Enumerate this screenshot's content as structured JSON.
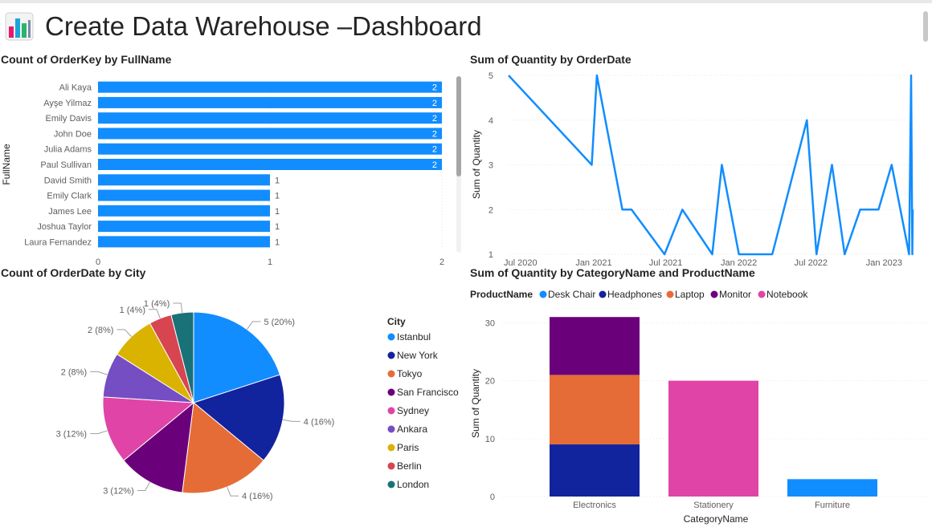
{
  "header": {
    "title": "Create Data Warehouse –Dashboard",
    "icon": "bar-chart-icon"
  },
  "chart_data": [
    {
      "id": "orders_by_name",
      "type": "bar",
      "orientation": "horizontal",
      "title": "Count of OrderKey by FullName",
      "xlabel": "",
      "ylabel": "FullName",
      "categories": [
        "Ali Kaya",
        "Ayşe Yilmaz",
        "Emily Davis",
        "John Doe",
        "Julia Adams",
        "Paul Sullivan",
        "David Smith",
        "Emily Clark",
        "James Lee",
        "Joshua Taylor",
        "Laura Fernandez"
      ],
      "values": [
        2,
        2,
        2,
        2,
        2,
        2,
        1,
        1,
        1,
        1,
        1
      ],
      "xlim": [
        0,
        2
      ],
      "xticks": [
        "0",
        "1",
        "2"
      ],
      "color": "#118DFF",
      "grid": true
    },
    {
      "id": "quantity_by_date",
      "type": "line",
      "title": "Sum of Quantity by OrderDate",
      "xlabel": "",
      "ylabel": "Sum of Quantity",
      "x": [
        "2020-06-01",
        "2020-12-27",
        "2021-01-09",
        "2021-03-14",
        "2021-04-06",
        "2021-06-28",
        "2021-08-12",
        "2021-10-26",
        "2021-11-19",
        "2022-01-01",
        "2022-03-26",
        "2022-06-21",
        "2022-07-15",
        "2022-08-23",
        "2022-09-24",
        "2022-11-02",
        "2022-12-18",
        "2023-01-20",
        "2023-03-05",
        "2023-03-10",
        "2023-03-13",
        "2023-03-14"
      ],
      "y": [
        5,
        3,
        5,
        2,
        2,
        1,
        2,
        1,
        3,
        1,
        1,
        4,
        1,
        3,
        1,
        2,
        2,
        3,
        1,
        5,
        1,
        2
      ],
      "ylim": [
        1,
        5
      ],
      "yticks": [
        "1",
        "2",
        "3",
        "4",
        "5"
      ],
      "xticks": [
        "Jul 2020",
        "Jan 2021",
        "Jul 2021",
        "Jan 2022",
        "Jul 2022",
        "Jan 2023"
      ],
      "color": "#118DFF",
      "grid": true
    },
    {
      "id": "orders_by_city",
      "type": "pie",
      "title": "Count of OrderDate by City",
      "legend_title": "City",
      "legend_position": "right",
      "categories": [
        "Istanbul",
        "New York",
        "Tokyo",
        "San Francisco",
        "Sydney",
        "Ankara",
        "Paris",
        "Berlin",
        "London"
      ],
      "values": [
        5,
        4,
        4,
        3,
        3,
        2,
        2,
        1,
        1
      ],
      "labels": [
        "5 (20%)",
        "4 (16%)",
        "4 (16%)",
        "3 (12%)",
        "3 (12%)",
        "2 (8%)",
        "2 (8%)",
        "1 (4%)",
        "1 (4%)"
      ],
      "colors": [
        "#118DFF",
        "#12239E",
        "#E66C37",
        "#6B007B",
        "#E044A7",
        "#744EC2",
        "#D9B300",
        "#D64550",
        "#197278"
      ]
    },
    {
      "id": "quantity_by_category",
      "type": "bar",
      "stacked": true,
      "title": "Sum of Quantity by CategoryName and ProductName",
      "xlabel": "CategoryName",
      "ylabel": "Sum of Quantity",
      "legend_title": "ProductName",
      "legend_position": "top-left",
      "categories": [
        "Electronics",
        "Stationery",
        "Furniture"
      ],
      "series": [
        {
          "name": "Desk Chair",
          "values": [
            0,
            0,
            3
          ],
          "color": "#118DFF"
        },
        {
          "name": "Headphones",
          "values": [
            9,
            0,
            0
          ],
          "color": "#12239E"
        },
        {
          "name": "Laptop",
          "values": [
            12,
            0,
            0
          ],
          "color": "#E66C37"
        },
        {
          "name": "Monitor",
          "values": [
            10,
            0,
            0
          ],
          "color": "#6B007B"
        },
        {
          "name": "Notebook",
          "values": [
            0,
            20,
            0
          ],
          "color": "#E044A7"
        }
      ],
      "ylim": [
        0,
        32
      ],
      "yticks": [
        "0",
        "10",
        "20",
        "30"
      ],
      "grid": true
    }
  ]
}
